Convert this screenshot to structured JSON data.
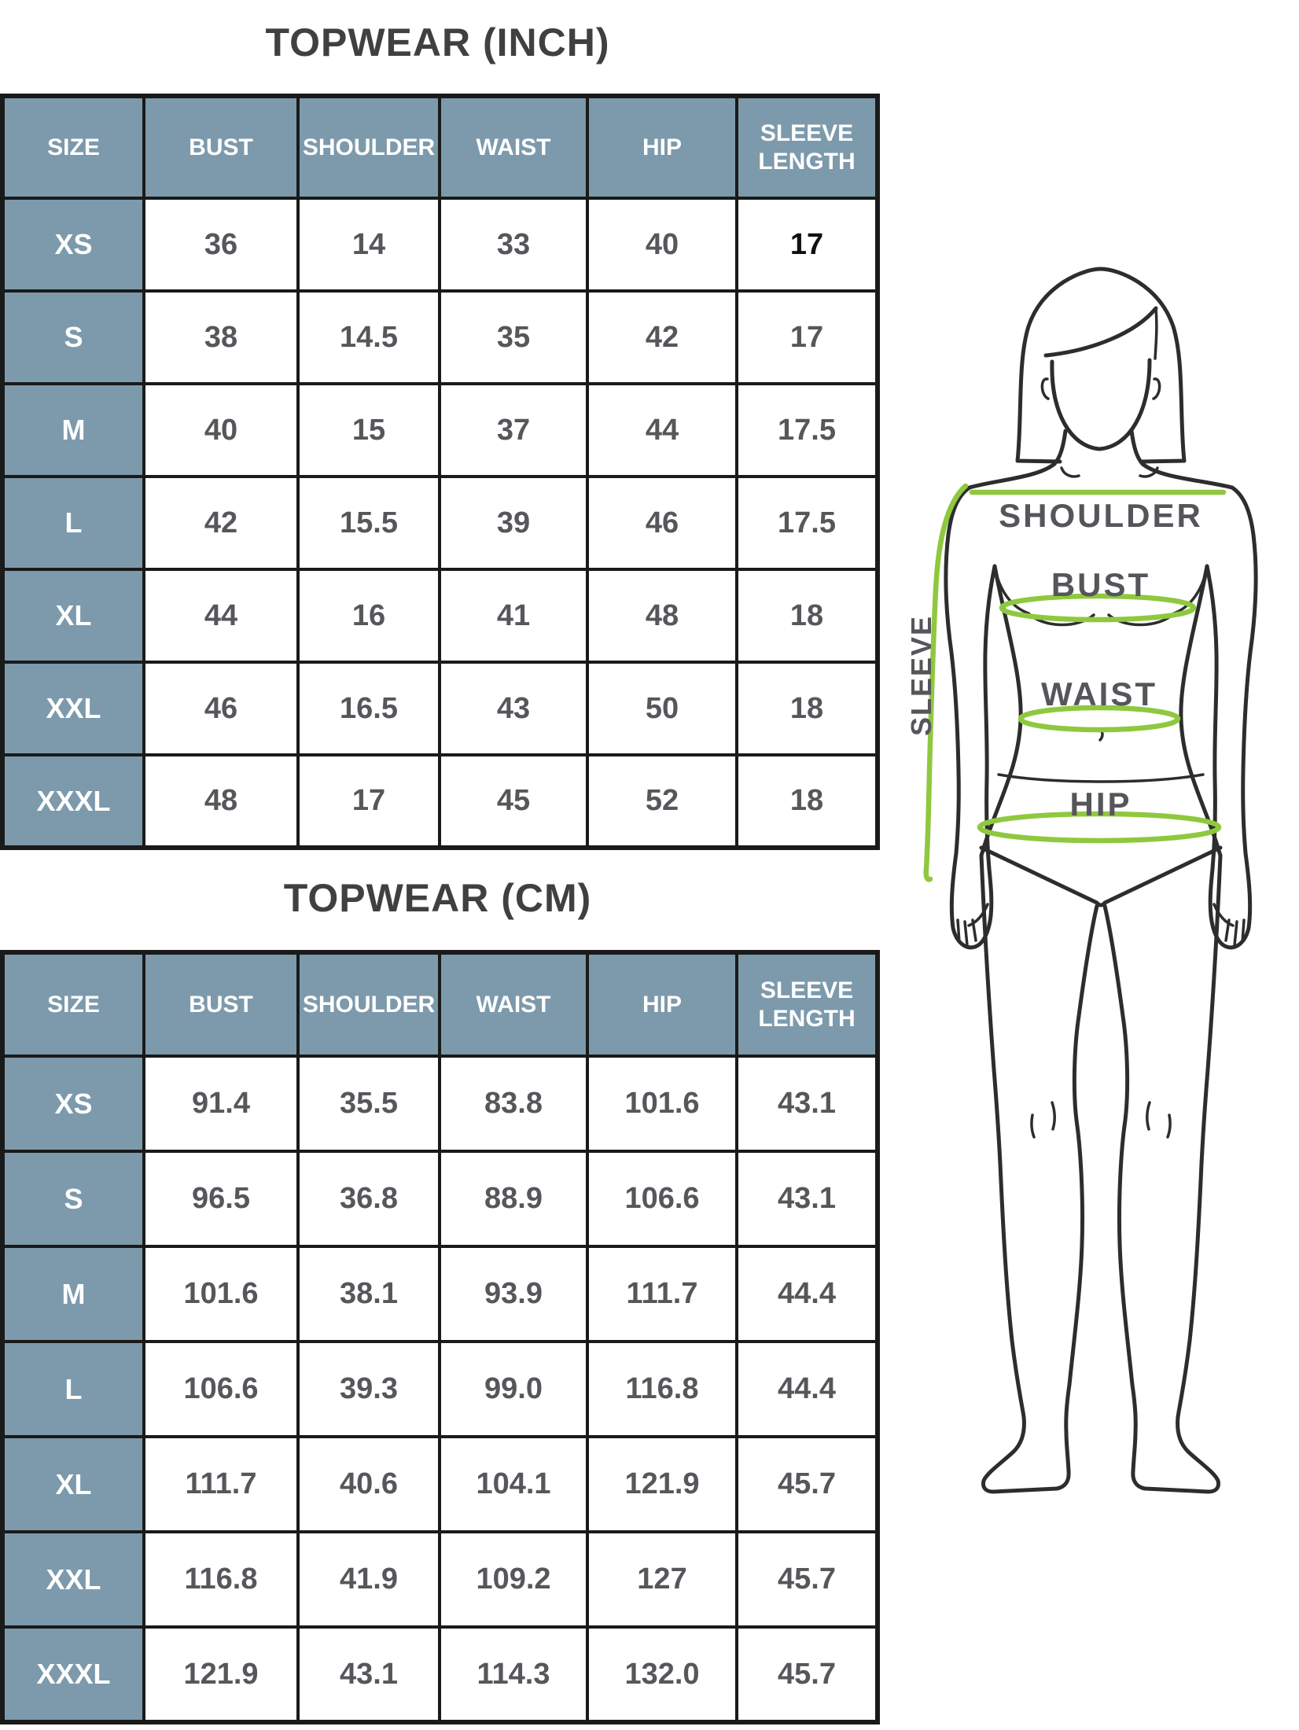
{
  "colors": {
    "header_bg": "#7c9aab",
    "border": "#1a1a1a",
    "number_text": "#56575b",
    "title_text": "#3f4041",
    "size_text": "#ffffff",
    "figure_line": "#2d2d2d",
    "measure_green": "#8fc83e",
    "label_text": "#55565a",
    "emphasis_text": "#111111",
    "page_bg": "#ffffff"
  },
  "tables": [
    {
      "unit": "INCH",
      "title": "TOPWEAR (INCH)",
      "columns": [
        "SIZE",
        "BUST",
        "SHOULDER",
        "WAIST",
        "HIP",
        "SLEEVE LENGTH"
      ],
      "rows": [
        {
          "size": "XS",
          "values": [
            "36",
            "14",
            "33",
            "40",
            "17"
          ]
        },
        {
          "size": "S",
          "values": [
            "38",
            "14.5",
            "35",
            "42",
            "17"
          ]
        },
        {
          "size": "M",
          "values": [
            "40",
            "15",
            "37",
            "44",
            "17.5"
          ]
        },
        {
          "size": "L",
          "values": [
            "42",
            "15.5",
            "39",
            "46",
            "17.5"
          ]
        },
        {
          "size": "XL",
          "values": [
            "44",
            "16",
            "41",
            "48",
            "18"
          ]
        },
        {
          "size": "XXL",
          "values": [
            "46",
            "16.5",
            "43",
            "50",
            "18"
          ]
        },
        {
          "size": "XXXL",
          "values": [
            "48",
            "17",
            "45",
            "52",
            "18"
          ]
        }
      ]
    },
    {
      "unit": "CM",
      "title": "TOPWEAR (CM)",
      "columns": [
        "SIZE",
        "BUST",
        "SHOULDER",
        "WAIST",
        "HIP",
        "SLEEVE LENGTH"
      ],
      "rows": [
        {
          "size": "XS",
          "values": [
            "91.4",
            "35.5",
            "83.8",
            "101.6",
            "43.1"
          ]
        },
        {
          "size": "S",
          "values": [
            "96.5",
            "36.8",
            "88.9",
            "106.6",
            "43.1"
          ]
        },
        {
          "size": "M",
          "values": [
            "101.6",
            "38.1",
            "93.9",
            "111.7",
            "44.4"
          ]
        },
        {
          "size": "L",
          "values": [
            "106.6",
            "39.3",
            "99.0",
            "116.8",
            "44.4"
          ]
        },
        {
          "size": "XL",
          "values": [
            "111.7",
            "40.6",
            "104.1",
            "121.9",
            "45.7"
          ]
        },
        {
          "size": "XXL",
          "values": [
            "116.8",
            "41.9",
            "109.2",
            "127",
            "45.7"
          ]
        },
        {
          "size": "XXXL",
          "values": [
            "121.9",
            "43.1",
            "114.3",
            "132.0",
            "45.7"
          ]
        }
      ]
    }
  ],
  "emphasized_cells": [
    {
      "table": 0,
      "row": 0,
      "value_index": 4
    }
  ],
  "figure_labels": {
    "shoulder": "SHOULDER",
    "bust": "BUST",
    "waist": "WAIST",
    "hip": "HIP",
    "sleeve": "SLEEVE"
  }
}
